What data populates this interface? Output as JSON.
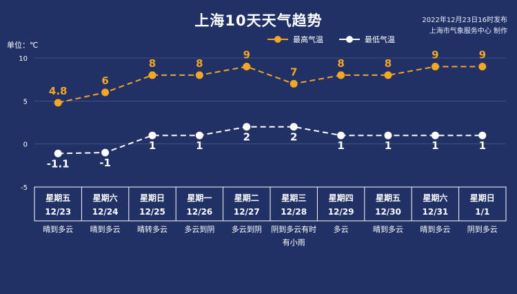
{
  "header": {
    "title": "上海10天天气趋势",
    "publish_time": "2022年12月23日16时发布",
    "publisher": "上海市气象服务中心 制作"
  },
  "colors": {
    "background": "#213166",
    "high": "#f5a623",
    "low": "#ffffff",
    "grid": "#c8cde0"
  },
  "chart_data": {
    "type": "line",
    "unit_label": "单位：℃",
    "ylim": [
      -5,
      10
    ],
    "yticks": [
      -5,
      0,
      5,
      10
    ],
    "legend_placement": "top",
    "series": [
      {
        "name": "最高气温",
        "values": [
          4.8,
          6,
          8,
          8,
          9,
          7,
          8,
          8,
          9,
          9
        ]
      },
      {
        "name": "最低气温",
        "values": [
          -1.1,
          -1,
          1,
          1,
          2,
          2,
          1,
          1,
          1,
          1
        ]
      }
    ],
    "days": [
      {
        "weekday": "星期五",
        "date": "12/23",
        "weather": "晴到多云"
      },
      {
        "weekday": "星期六",
        "date": "12/24",
        "weather": "晴到多云"
      },
      {
        "weekday": "星期日",
        "date": "12/25",
        "weather": "晴转多云"
      },
      {
        "weekday": "星期一",
        "date": "12/26",
        "weather": "多云到阴"
      },
      {
        "weekday": "星期二",
        "date": "12/27",
        "weather": "多云到阴"
      },
      {
        "weekday": "星期三",
        "date": "12/28",
        "weather": "阴到多云有时有小雨"
      },
      {
        "weekday": "星期四",
        "date": "12/29",
        "weather": "多云"
      },
      {
        "weekday": "星期五",
        "date": "12/30",
        "weather": "晴到多云"
      },
      {
        "weekday": "星期六",
        "date": "12/31",
        "weather": "晴到多云"
      },
      {
        "weekday": "星期日",
        "date": "1/1",
        "weather": "阴到多云"
      }
    ]
  }
}
